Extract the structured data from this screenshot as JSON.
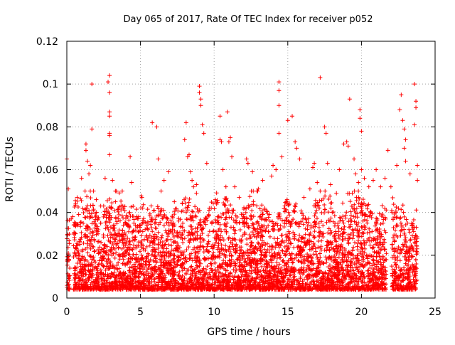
{
  "chart_data": {
    "type": "scatter",
    "title": "Day 065 of 2017, Rate Of TEC Index for receiver p052",
    "xlabel": "GPS time / hours",
    "ylabel": "ROTI / TECUs",
    "xlim": [
      0,
      25
    ],
    "ylim": [
      0,
      0.12
    ],
    "x_ticks": [
      0,
      5,
      10,
      15,
      20,
      25
    ],
    "y_ticks": [
      0,
      0.02,
      0.04,
      0.06,
      0.08,
      0.1,
      0.12
    ],
    "x_tick_labels": [
      "0",
      "5",
      "10",
      "15",
      "20",
      "25"
    ],
    "y_tick_labels": [
      "0",
      "0.02",
      "0.04",
      "0.06",
      "0.08",
      "0.1",
      "0.12"
    ],
    "grid": true,
    "legend": "none",
    "marker": "plus",
    "color": "#ff0000",
    "series": [
      {
        "name": "ROTI p052",
        "description": "dense scatter, baseline 0.005-0.015 TECU, 24h coverage",
        "points": [
          [
            0.0,
            0.065
          ],
          [
            0.1,
            0.051
          ],
          [
            0.3,
            0.037
          ],
          [
            0.4,
            0.038
          ],
          [
            0.6,
            0.044
          ],
          [
            0.7,
            0.047
          ],
          [
            1.0,
            0.056
          ],
          [
            1.3,
            0.069
          ],
          [
            1.3,
            0.072
          ],
          [
            1.4,
            0.064
          ],
          [
            1.5,
            0.058
          ],
          [
            1.6,
            0.062
          ],
          [
            1.7,
            0.1
          ],
          [
            1.7,
            0.079
          ],
          [
            2.0,
            0.046
          ],
          [
            2.3,
            0.043
          ],
          [
            2.5,
            0.043
          ],
          [
            2.6,
            0.056
          ],
          [
            2.8,
            0.101
          ],
          [
            2.9,
            0.104
          ],
          [
            2.9,
            0.096
          ],
          [
            2.9,
            0.087
          ],
          [
            2.9,
            0.085
          ],
          [
            2.9,
            0.077
          ],
          [
            2.9,
            0.076
          ],
          [
            2.9,
            0.067
          ],
          [
            3.1,
            0.055
          ],
          [
            3.3,
            0.045
          ],
          [
            3.5,
            0.042
          ],
          [
            3.8,
            0.043
          ],
          [
            4.3,
            0.066
          ],
          [
            4.4,
            0.054
          ],
          [
            5.1,
            0.047
          ],
          [
            5.5,
            0.035
          ],
          [
            5.8,
            0.082
          ],
          [
            6.1,
            0.08
          ],
          [
            6.2,
            0.065
          ],
          [
            6.4,
            0.05
          ],
          [
            6.6,
            0.055
          ],
          [
            6.9,
            0.059
          ],
          [
            7.3,
            0.045
          ],
          [
            7.6,
            0.036
          ],
          [
            8.0,
            0.074
          ],
          [
            8.1,
            0.082
          ],
          [
            8.2,
            0.066
          ],
          [
            8.3,
            0.067
          ],
          [
            8.4,
            0.059
          ],
          [
            8.5,
            0.055
          ],
          [
            8.6,
            0.052
          ],
          [
            8.8,
            0.053
          ],
          [
            8.8,
            0.049
          ],
          [
            9.0,
            0.099
          ],
          [
            9.0,
            0.096
          ],
          [
            9.1,
            0.093
          ],
          [
            9.1,
            0.09
          ],
          [
            9.2,
            0.081
          ],
          [
            9.3,
            0.077
          ],
          [
            9.5,
            0.063
          ],
          [
            10.4,
            0.085
          ],
          [
            10.4,
            0.074
          ],
          [
            10.5,
            0.073
          ],
          [
            10.6,
            0.06
          ],
          [
            10.8,
            0.052
          ],
          [
            10.9,
            0.087
          ],
          [
            11.0,
            0.073
          ],
          [
            11.1,
            0.075
          ],
          [
            11.2,
            0.066
          ],
          [
            11.4,
            0.052
          ],
          [
            11.7,
            0.047
          ],
          [
            12.2,
            0.065
          ],
          [
            12.3,
            0.063
          ],
          [
            12.6,
            0.059
          ],
          [
            13.0,
            0.051
          ],
          [
            13.3,
            0.055
          ],
          [
            13.9,
            0.057
          ],
          [
            14.0,
            0.062
          ],
          [
            14.2,
            0.06
          ],
          [
            14.4,
            0.101
          ],
          [
            14.4,
            0.097
          ],
          [
            14.4,
            0.09
          ],
          [
            14.4,
            0.077
          ],
          [
            14.6,
            0.066
          ],
          [
            14.9,
            0.045
          ],
          [
            15.0,
            0.083
          ],
          [
            15.3,
            0.085
          ],
          [
            15.5,
            0.073
          ],
          [
            15.6,
            0.07
          ],
          [
            15.8,
            0.065
          ],
          [
            16.1,
            0.047
          ],
          [
            16.5,
            0.051
          ],
          [
            16.7,
            0.061
          ],
          [
            16.8,
            0.063
          ],
          [
            17.0,
            0.054
          ],
          [
            17.2,
            0.103
          ],
          [
            17.5,
            0.08
          ],
          [
            17.6,
            0.077
          ],
          [
            17.7,
            0.063
          ],
          [
            17.9,
            0.053
          ],
          [
            18.3,
            0.049
          ],
          [
            18.5,
            0.06
          ],
          [
            18.8,
            0.072
          ],
          [
            19.0,
            0.073
          ],
          [
            19.1,
            0.071
          ],
          [
            19.2,
            0.093
          ],
          [
            19.5,
            0.065
          ],
          [
            19.6,
            0.058
          ],
          [
            19.8,
            0.054
          ],
          [
            19.9,
            0.088
          ],
          [
            19.9,
            0.084
          ],
          [
            20.0,
            0.078
          ],
          [
            20.0,
            0.06
          ],
          [
            20.2,
            0.056
          ],
          [
            20.5,
            0.052
          ],
          [
            20.8,
            0.055
          ],
          [
            21.0,
            0.06
          ],
          [
            21.3,
            0.052
          ],
          [
            21.6,
            0.056
          ],
          [
            21.8,
            0.069
          ],
          [
            22.0,
            0.052
          ],
          [
            22.4,
            0.062
          ],
          [
            22.6,
            0.088
          ],
          [
            22.7,
            0.095
          ],
          [
            22.8,
            0.083
          ],
          [
            22.9,
            0.079
          ],
          [
            22.9,
            0.07
          ],
          [
            23.0,
            0.074
          ],
          [
            23.0,
            0.064
          ],
          [
            23.3,
            0.058
          ],
          [
            23.6,
            0.1
          ],
          [
            23.7,
            0.092
          ],
          [
            23.7,
            0.089
          ],
          [
            23.6,
            0.081
          ],
          [
            23.8,
            0.062
          ],
          [
            23.8,
            0.055
          ]
        ]
      }
    ]
  }
}
